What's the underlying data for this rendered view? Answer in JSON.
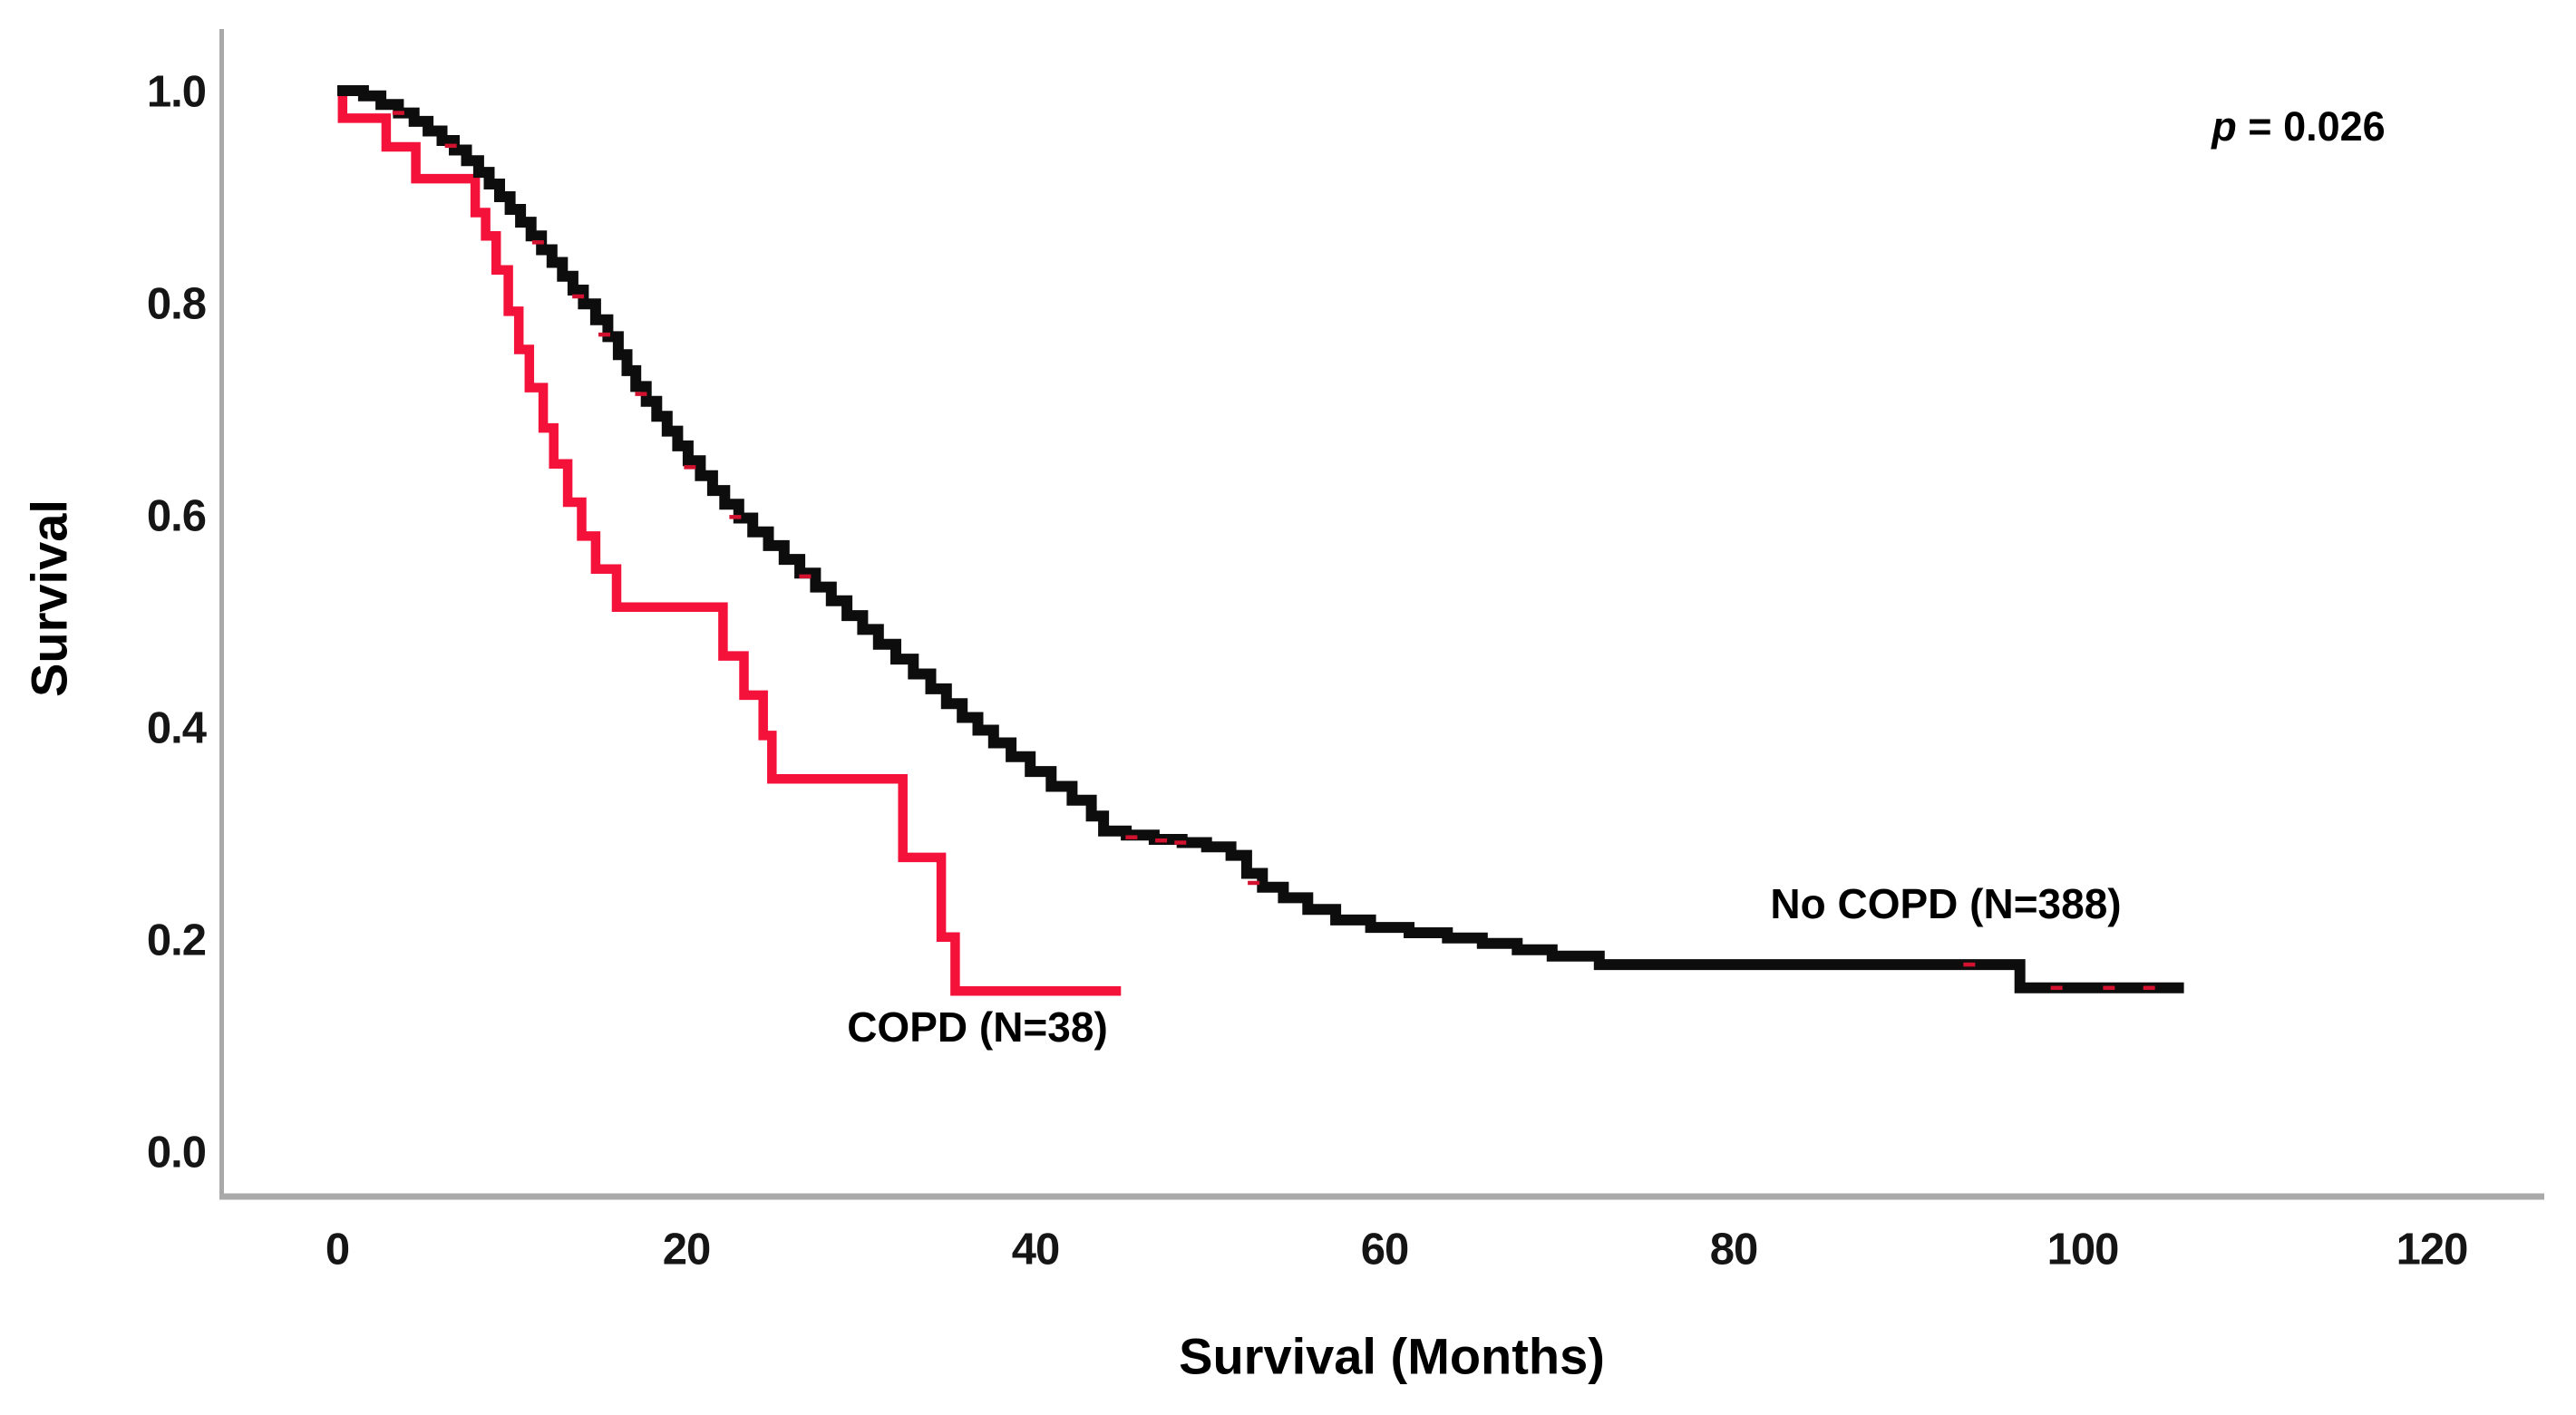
{
  "figure": {
    "background": "#ffffff",
    "axis_color": "#a9a9a9",
    "tick_text_color": "#151515"
  },
  "chart_data": {
    "type": "line",
    "subtype": "kaplan-meier-step",
    "title": "",
    "xlabel": "Survival (Months)",
    "ylabel": "Survival",
    "xlim": [
      0,
      120
    ],
    "ylim": [
      0.0,
      1.0
    ],
    "grid": "off",
    "legend_position": "inline-labels",
    "x_ticks": [
      "0",
      "20",
      "40",
      "60",
      "80",
      "100",
      "120"
    ],
    "y_ticks": [
      "0.0",
      "0.2",
      "0.4",
      "0.6",
      "0.8",
      "1.0"
    ],
    "annotation": {
      "p_value": "p = 0.026",
      "prefix": "p",
      "text": " = 0.026"
    },
    "series": [
      {
        "id": "copd",
        "name": "COPD",
        "n": 38,
        "label": "COPD (N=38)",
        "color": "#f5123a",
        "stroke_width": 10.5,
        "end_time": 44.9,
        "steps": [
          [
            0,
            1.0
          ],
          [
            0.3,
            0.974
          ],
          [
            2.8,
            0.947
          ],
          [
            4.5,
            0.917
          ],
          [
            7.9,
            0.885
          ],
          [
            8.5,
            0.863
          ],
          [
            9.1,
            0.831
          ],
          [
            9.8,
            0.792
          ],
          [
            10.4,
            0.756
          ],
          [
            11.0,
            0.72
          ],
          [
            11.8,
            0.682
          ],
          [
            12.4,
            0.648
          ],
          [
            13.2,
            0.612
          ],
          [
            14.0,
            0.58
          ],
          [
            14.8,
            0.549
          ],
          [
            16.0,
            0.513
          ],
          [
            22.1,
            0.467
          ],
          [
            23.3,
            0.43
          ],
          [
            24.4,
            0.392
          ],
          [
            24.9,
            0.351
          ],
          [
            32.4,
            0.277
          ],
          [
            34.6,
            0.202
          ],
          [
            35.4,
            0.151
          ]
        ],
        "censor_marks": []
      },
      {
        "id": "no-copd",
        "name": "No COPD",
        "n": 388,
        "label": "No COPD (N=388)",
        "color": "#0d0d0d",
        "stroke_width": 12,
        "end_time": 105.8,
        "steps": [
          [
            0,
            1.0
          ],
          [
            1.5,
            0.995
          ],
          [
            2.5,
            0.987
          ],
          [
            3.5,
            0.979
          ],
          [
            4.4,
            0.971
          ],
          [
            5.2,
            0.962
          ],
          [
            6.0,
            0.953
          ],
          [
            6.7,
            0.944
          ],
          [
            7.4,
            0.934
          ],
          [
            8.1,
            0.923
          ],
          [
            8.7,
            0.912
          ],
          [
            9.3,
            0.9
          ],
          [
            9.9,
            0.888
          ],
          [
            10.5,
            0.876
          ],
          [
            11.1,
            0.863
          ],
          [
            11.7,
            0.85
          ],
          [
            12.3,
            0.838
          ],
          [
            12.9,
            0.825
          ],
          [
            13.5,
            0.812
          ],
          [
            14.1,
            0.799
          ],
          [
            14.8,
            0.784
          ],
          [
            15.5,
            0.768
          ],
          [
            16.1,
            0.751
          ],
          [
            16.6,
            0.736
          ],
          [
            17.1,
            0.721
          ],
          [
            17.7,
            0.707
          ],
          [
            18.3,
            0.693
          ],
          [
            18.9,
            0.679
          ],
          [
            19.5,
            0.665
          ],
          [
            20.1,
            0.651
          ],
          [
            20.8,
            0.637
          ],
          [
            21.5,
            0.623
          ],
          [
            22.2,
            0.61
          ],
          [
            23.0,
            0.597
          ],
          [
            23.8,
            0.584
          ],
          [
            24.7,
            0.571
          ],
          [
            25.6,
            0.558
          ],
          [
            26.5,
            0.545
          ],
          [
            27.4,
            0.532
          ],
          [
            28.3,
            0.519
          ],
          [
            29.2,
            0.505
          ],
          [
            30.1,
            0.492
          ],
          [
            31.0,
            0.478
          ],
          [
            32.0,
            0.464
          ],
          [
            33.0,
            0.45
          ],
          [
            34.0,
            0.436
          ],
          [
            34.9,
            0.422
          ],
          [
            35.8,
            0.409
          ],
          [
            36.7,
            0.397
          ],
          [
            37.6,
            0.385
          ],
          [
            38.6,
            0.372
          ],
          [
            39.7,
            0.358
          ],
          [
            40.9,
            0.344
          ],
          [
            42.1,
            0.331
          ],
          [
            43.2,
            0.316
          ],
          [
            43.9,
            0.302
          ],
          [
            45.2,
            0.298
          ],
          [
            46.8,
            0.294
          ],
          [
            48.4,
            0.291
          ],
          [
            49.8,
            0.287
          ],
          [
            51.2,
            0.279
          ],
          [
            52.1,
            0.262
          ],
          [
            53.0,
            0.249
          ],
          [
            54.2,
            0.239
          ],
          [
            55.6,
            0.228
          ],
          [
            57.2,
            0.218
          ],
          [
            59.2,
            0.211
          ],
          [
            61.4,
            0.206
          ],
          [
            63.6,
            0.201
          ],
          [
            65.6,
            0.196
          ],
          [
            67.6,
            0.19
          ],
          [
            69.6,
            0.184
          ],
          [
            72.3,
            0.176
          ],
          [
            96.4,
            0.154
          ]
        ],
        "censor_marks": [
          [
            3.5,
            0.979
          ],
          [
            6.5,
            0.948
          ],
          [
            11.5,
            0.857
          ],
          [
            13.8,
            0.806
          ],
          [
            15.3,
            0.77
          ],
          [
            17.4,
            0.714
          ],
          [
            20.2,
            0.645
          ],
          [
            22.8,
            0.598
          ],
          [
            26.8,
            0.542
          ],
          [
            45.5,
            0.296
          ],
          [
            47.2,
            0.293
          ],
          [
            48.3,
            0.291
          ],
          [
            52.5,
            0.253
          ],
          [
            93.5,
            0.176
          ],
          [
            98.5,
            0.154
          ],
          [
            101.5,
            0.154
          ],
          [
            103.8,
            0.154
          ]
        ]
      }
    ]
  }
}
